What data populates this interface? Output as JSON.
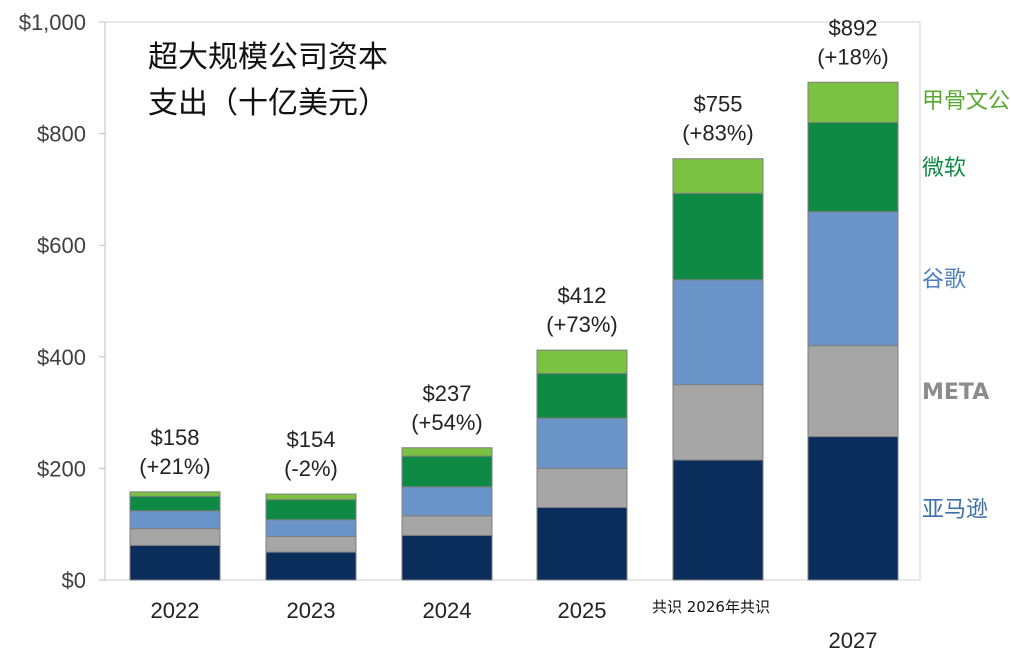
{
  "chart_data": {
    "type": "bar",
    "stacked": true,
    "title_lines": [
      "超大规模公司资本",
      "支出（十亿美元）"
    ],
    "categories": [
      "2022",
      "2023",
      "2024",
      "2025",
      "2026",
      "2027"
    ],
    "category_labels": [
      "2022",
      "2023",
      "2024",
      "2025",
      "",
      "2027"
    ],
    "consensus_label": "共识 2026年共识",
    "ylim": [
      0,
      1000
    ],
    "yticks": [
      0,
      200,
      400,
      600,
      800,
      1000
    ],
    "ytick_labels": [
      "$0",
      "$200",
      "$400",
      "$600",
      "$800",
      "$1,000"
    ],
    "series": [
      {
        "name": "亚马逊",
        "color": "#0b2d5c",
        "values": [
          62,
          50,
          80,
          130,
          215,
          257
        ]
      },
      {
        "name": "META",
        "color": "#a6a6a6",
        "values": [
          30,
          28,
          35,
          70,
          135,
          163
        ]
      },
      {
        "name": "谷歌",
        "color": "#6b95c9",
        "values": [
          32,
          30,
          52,
          90,
          188,
          240
        ]
      },
      {
        "name": "微软",
        "color": "#0e8a45",
        "values": [
          26,
          36,
          55,
          80,
          155,
          160
        ]
      },
      {
        "name": "甲骨文公司",
        "color": "#7cc242",
        "values": [
          8,
          10,
          15,
          42,
          62,
          72
        ]
      }
    ],
    "total_labels": [
      "$158",
      "$154",
      "$237",
      "$412",
      "$755",
      "$892"
    ],
    "growth_labels": [
      "(+21%)",
      "(-2%)",
      "(+54%)",
      "(+73%)",
      "(+83%)",
      "(+18%)"
    ],
    "legend_colors": [
      "#3f6fa8",
      "#8c8c8c",
      "#4c7fbf",
      "#0e8a45",
      "#5aa832"
    ]
  }
}
